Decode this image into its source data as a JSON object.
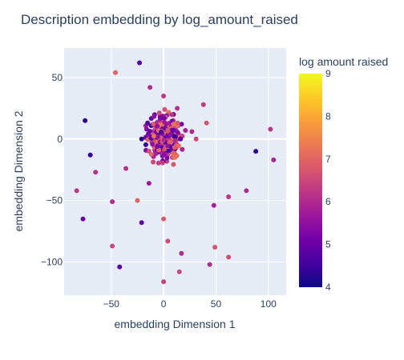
{
  "chart_data": {
    "type": "scatter",
    "title": "Description embedding by log_amount_raised",
    "xlabel": "embedding Dimension 1",
    "ylabel": "embedding Dimension 2",
    "xlim": [
      -95,
      117
    ],
    "ylim": [
      -127,
      74
    ],
    "xticks": [
      -50,
      0,
      50,
      100
    ],
    "yticks": [
      -100,
      -50,
      0,
      50
    ],
    "grid": true,
    "colorbar": {
      "title": "log amount raised",
      "min": 4,
      "max": 9,
      "ticks": [
        4,
        5,
        6,
        7,
        8,
        9
      ],
      "colorscale": [
        "#0d0887",
        "#46039f",
        "#7201a8",
        "#9c179e",
        "#bd3786",
        "#d8576b",
        "#ed7953",
        "#fb9f3a",
        "#fdca26",
        "#f0f921"
      ]
    },
    "points": [
      {
        "x": -23,
        "y": 62,
        "c": 4.8
      },
      {
        "x": -46,
        "y": 54,
        "c": 7.0
      },
      {
        "x": -13,
        "y": 42,
        "c": 6.0
      },
      {
        "x": 0,
        "y": 35,
        "c": 6.2
      },
      {
        "x": 38,
        "y": 28,
        "c": 6.3
      },
      {
        "x": 13,
        "y": 25,
        "c": 6.1
      },
      {
        "x": -75,
        "y": 15,
        "c": 4.3
      },
      {
        "x": 41,
        "y": 13,
        "c": 6.7
      },
      {
        "x": 102,
        "y": 8,
        "c": 6.2
      },
      {
        "x": 27,
        "y": 6,
        "c": 6.0
      },
      {
        "x": 31,
        "y": 0,
        "c": 6.5
      },
      {
        "x": -21,
        "y": 0,
        "c": 4.3
      },
      {
        "x": 88,
        "y": -10,
        "c": 4.3
      },
      {
        "x": -70,
        "y": -13,
        "c": 4.4
      },
      {
        "x": 105,
        "y": -17,
        "c": 5.9
      },
      {
        "x": -36,
        "y": -24,
        "c": 6.1
      },
      {
        "x": -65,
        "y": -27,
        "c": 6.1
      },
      {
        "x": -14,
        "y": -36,
        "c": 5.7
      },
      {
        "x": -83,
        "y": -42,
        "c": 6.2
      },
      {
        "x": 62,
        "y": -47,
        "c": 6.2
      },
      {
        "x": 79,
        "y": -42,
        "c": 6.0
      },
      {
        "x": -25,
        "y": -50,
        "c": 7.0
      },
      {
        "x": -49,
        "y": -51,
        "c": 6.0
      },
      {
        "x": 48,
        "y": -54,
        "c": 5.8
      },
      {
        "x": -77,
        "y": -65,
        "c": 5.0
      },
      {
        "x": 0,
        "y": -65,
        "c": 6.8
      },
      {
        "x": -21,
        "y": -68,
        "c": 4.9
      },
      {
        "x": 4,
        "y": -83,
        "c": 6.6
      },
      {
        "x": -49,
        "y": -87,
        "c": 6.5
      },
      {
        "x": 49,
        "y": -88,
        "c": 6.7
      },
      {
        "x": 17,
        "y": -93,
        "c": 6.0
      },
      {
        "x": 62,
        "y": -96,
        "c": 6.6
      },
      {
        "x": 44,
        "y": -102,
        "c": 6.0
      },
      {
        "x": -42,
        "y": -104,
        "c": 4.8
      },
      {
        "x": 15,
        "y": -108,
        "c": 6.5
      },
      {
        "x": 0,
        "y": -116,
        "c": 6.4
      }
    ]
  }
}
